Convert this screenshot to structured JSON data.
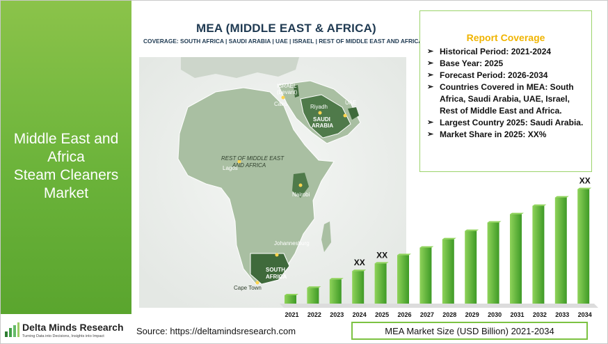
{
  "left_panel": {
    "title_lines": [
      "Middle East and",
      "Africa",
      "Steam Cleaners",
      "Market"
    ]
  },
  "logo": {
    "name": "Delta Minds Research",
    "tagline": "Turning Data into Decisions, Insights into Impact"
  },
  "map": {
    "title": "MEA (MIDDLE EAST & AFRICA)",
    "coverage": "COVERAGE: SOUTH AFRICA | SAUDI ARABIA | UAE | ISRAEL | REST OF MIDDLE EAST AND AFRICA",
    "labels": {
      "israel_1": "ISRAEL",
      "israel_2": "(Levant)",
      "cairo": "Cairo",
      "riyadh": "Riyadh",
      "uae": "UAE",
      "saudi_1": "SAUDI",
      "saudi_2": "ARABIA",
      "rest_1": "REST OF MIDDLE EAST",
      "rest_2": "AND AFRICA",
      "lagos": "Lagos",
      "nairobi": "Nairobi",
      "johannesburg": "Johannesburg",
      "south_1": "SOUTH",
      "south_2": "AFRICA",
      "cape_town": "Cape Town"
    },
    "colors": {
      "land": "#a9bfa2",
      "highlight": "#4f7a4a",
      "water": "#ffffff"
    }
  },
  "report_coverage": {
    "title": "Report Coverage",
    "items": [
      "Historical Period: 2021-2024",
      "Base Year: 2025",
      "Forecast Period: 2026-2034",
      "Countries Covered in MEA: South Africa, Saudi Arabia, UAE, Israel, Rest of Middle East and Africa.",
      "Largest Country 2025: Saudi Arabia.",
      "Market Share in 2025: XX%"
    ]
  },
  "source_text": "Source: https://deltamindsresearch.com",
  "chart_caption": "MEA Market Size (USD Billion) 2021-2034",
  "chart_data": {
    "type": "bar",
    "title": "MEA Market Size (USD Billion) 2021-2034",
    "categories": [
      "2021",
      "2022",
      "2023",
      "2024",
      "2025",
      "2026",
      "2027",
      "2028",
      "2029",
      "2030",
      "2031",
      "2032",
      "2033",
      "2034"
    ],
    "values": [
      1.0,
      1.9,
      2.9,
      3.9,
      4.8,
      5.8,
      6.7,
      7.7,
      8.7,
      9.7,
      10.7,
      11.7,
      12.7,
      13.7
    ],
    "value_labels": {
      "2024": "XX",
      "2025": "XX",
      "2034": "XX"
    },
    "ylim": [
      0,
      14.5
    ],
    "xlabel": "",
    "ylabel": "",
    "grid": false,
    "colors": {
      "bar_light": "#8fd35a",
      "bar_dark": "#3e9a26",
      "floor": "#dcdcdc"
    }
  }
}
